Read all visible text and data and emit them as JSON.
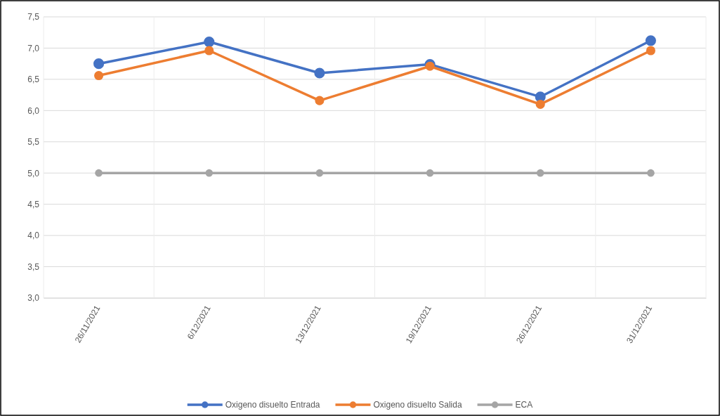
{
  "chart_data": {
    "type": "line",
    "categories": [
      "26/11/2021",
      "6/12/2021",
      "13/12/2021",
      "19/12/2021",
      "26/12/2021",
      "31/12/2021"
    ],
    "series": [
      {
        "name": "Oxigeno disuelto Entrada",
        "color": "#4472c4",
        "values": [
          6.75,
          7.1,
          6.6,
          6.74,
          6.22,
          7.12
        ]
      },
      {
        "name": "Oxigeno disuelto Salida",
        "color": "#ed7d31",
        "values": [
          6.56,
          6.96,
          6.16,
          6.71,
          6.1,
          6.96
        ]
      },
      {
        "name": "ECA",
        "color": "#a5a5a5",
        "values": [
          5,
          5,
          5,
          5,
          5,
          5
        ]
      }
    ],
    "ylim": [
      3,
      7.5
    ],
    "yticks": [
      {
        "value": 3,
        "label": "3,0"
      },
      {
        "value": 3.5,
        "label": "3,5"
      },
      {
        "value": 4,
        "label": "4,0"
      },
      {
        "value": 4.5,
        "label": "4,5"
      },
      {
        "value": 5,
        "label": "5,0"
      },
      {
        "value": 5.5,
        "label": "5,5"
      },
      {
        "value": 6,
        "label": "6,0"
      },
      {
        "value": 6.5,
        "label": "6,5"
      },
      {
        "value": 7,
        "label": "7,0"
      },
      {
        "value": 7.5,
        "label": "7,5"
      }
    ],
    "grid": true,
    "legend": "bottom",
    "marker": "circle",
    "line_style": "solid"
  }
}
